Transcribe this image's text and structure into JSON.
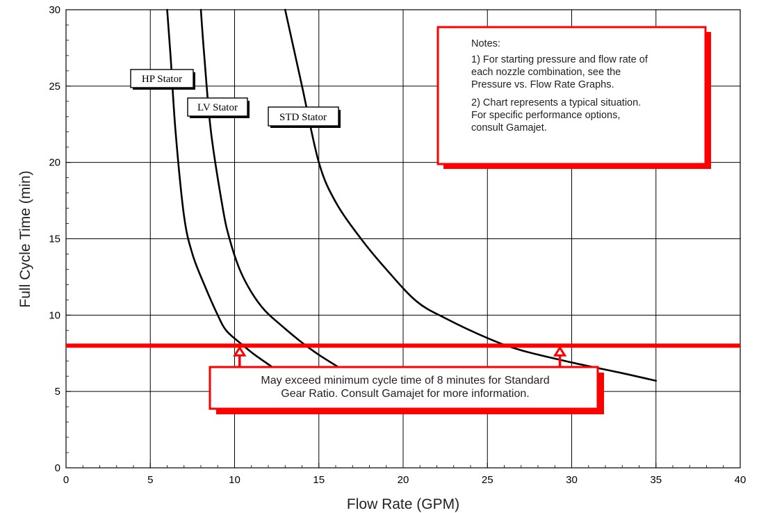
{
  "chart_data": {
    "type": "line",
    "title": "",
    "xlabel": "Flow Rate (GPM)",
    "ylabel": "Full Cycle Time (min)",
    "xlim": [
      0,
      40
    ],
    "ylim": [
      0,
      30
    ],
    "x_ticks": [
      0,
      5,
      10,
      15,
      20,
      25,
      30,
      35,
      40
    ],
    "y_ticks": [
      0,
      5,
      10,
      15,
      20,
      25,
      30
    ],
    "grid": true,
    "series": [
      {
        "name": "HP Stator",
        "color": "#000000",
        "points": [
          [
            6.0,
            30
          ],
          [
            6.2,
            27
          ],
          [
            6.5,
            22
          ],
          [
            7.0,
            16.5
          ],
          [
            7.5,
            14
          ],
          [
            8.2,
            12
          ],
          [
            9.0,
            10
          ],
          [
            9.5,
            9
          ],
          [
            10.3,
            8.2
          ],
          [
            11.2,
            7.4
          ],
          [
            12.5,
            6.4
          ]
        ]
      },
      {
        "name": "LV Stator",
        "color": "#000000",
        "points": [
          [
            8.0,
            30
          ],
          [
            8.2,
            27
          ],
          [
            8.6,
            22
          ],
          [
            9.3,
            17
          ],
          [
            9.7,
            15
          ],
          [
            10.3,
            13
          ],
          [
            11.0,
            11.5
          ],
          [
            11.8,
            10.3
          ],
          [
            12.8,
            9.3
          ],
          [
            14.0,
            8.2
          ],
          [
            15.0,
            7.4
          ],
          [
            16.3,
            6.5
          ]
        ]
      },
      {
        "name": "STD Stator",
        "color": "#000000",
        "points": [
          [
            13.0,
            30
          ],
          [
            14.0,
            25
          ],
          [
            15.0,
            20
          ],
          [
            16.0,
            17.4
          ],
          [
            17.5,
            15
          ],
          [
            19.0,
            13
          ],
          [
            20.8,
            10.9
          ],
          [
            22.5,
            9.8
          ],
          [
            25.0,
            8.5
          ],
          [
            27.0,
            7.7
          ],
          [
            30.0,
            6.9
          ],
          [
            33.0,
            6.2
          ],
          [
            35.0,
            5.7
          ]
        ]
      }
    ],
    "threshold": {
      "y": 8,
      "color": "#ff0000",
      "arrow_x": [
        10.3,
        29.3
      ]
    },
    "notes": {
      "lines": [
        "Notes:",
        "1) For starting pressure and flow rate of",
        "each nozzle combination, see the",
        "Pressure vs. Flow Rate Graphs.",
        "2) Chart represents a typical situation.",
        "For specific performance options,",
        "consult Gamajet."
      ]
    },
    "callout": {
      "lines": [
        "May exceed minimum cycle time of 8 minutes for Standard",
        "Gear Ratio. Consult Gamajet for more information."
      ]
    }
  }
}
